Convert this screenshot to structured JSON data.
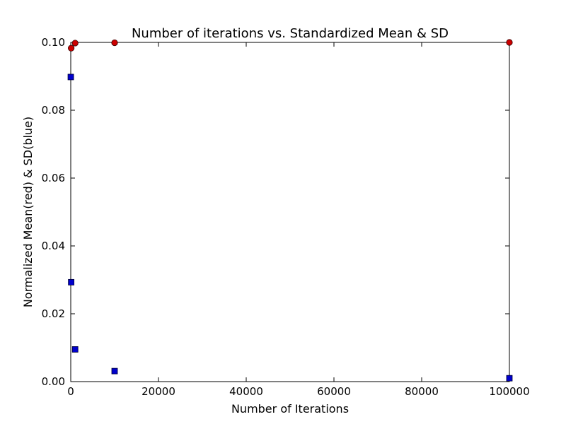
{
  "chart_data": {
    "type": "scatter",
    "title": "Number of iterations vs. Standardized Mean & SD",
    "xlabel": "Number of Iterations",
    "ylabel": "Normalized Mean(red) & SD(blue)",
    "xlim": [
      0,
      100000
    ],
    "ylim": [
      0,
      0.1
    ],
    "xticks": [
      0,
      20000,
      40000,
      60000,
      80000,
      100000
    ],
    "xtick_labels": [
      "0",
      "20000",
      "40000",
      "60000",
      "80000",
      "100000"
    ],
    "yticks": [
      0.0,
      0.02,
      0.04,
      0.06,
      0.08,
      0.1
    ],
    "ytick_labels": [
      "0.00",
      "0.02",
      "0.04",
      "0.06",
      "0.08",
      "0.10"
    ],
    "grid": false,
    "legend": "none",
    "series": [
      {
        "marker": "circle",
        "color": "#cc0000",
        "edge": "#330000",
        "points": [
          {
            "x": 100,
            "y": 0.0983
          },
          {
            "x": 1000,
            "y": 0.0998
          },
          {
            "x": 10000,
            "y": 0.0999
          },
          {
            "x": 100000,
            "y": 0.1
          }
        ]
      },
      {
        "marker": "square",
        "color": "#0000cc",
        "edge": "#000033",
        "points": [
          {
            "x": 10,
            "y": 0.0898
          },
          {
            "x": 100,
            "y": 0.0293
          },
          {
            "x": 1000,
            "y": 0.0095
          },
          {
            "x": 10000,
            "y": 0.0031
          },
          {
            "x": 100000,
            "y": 0.001
          }
        ]
      }
    ]
  }
}
